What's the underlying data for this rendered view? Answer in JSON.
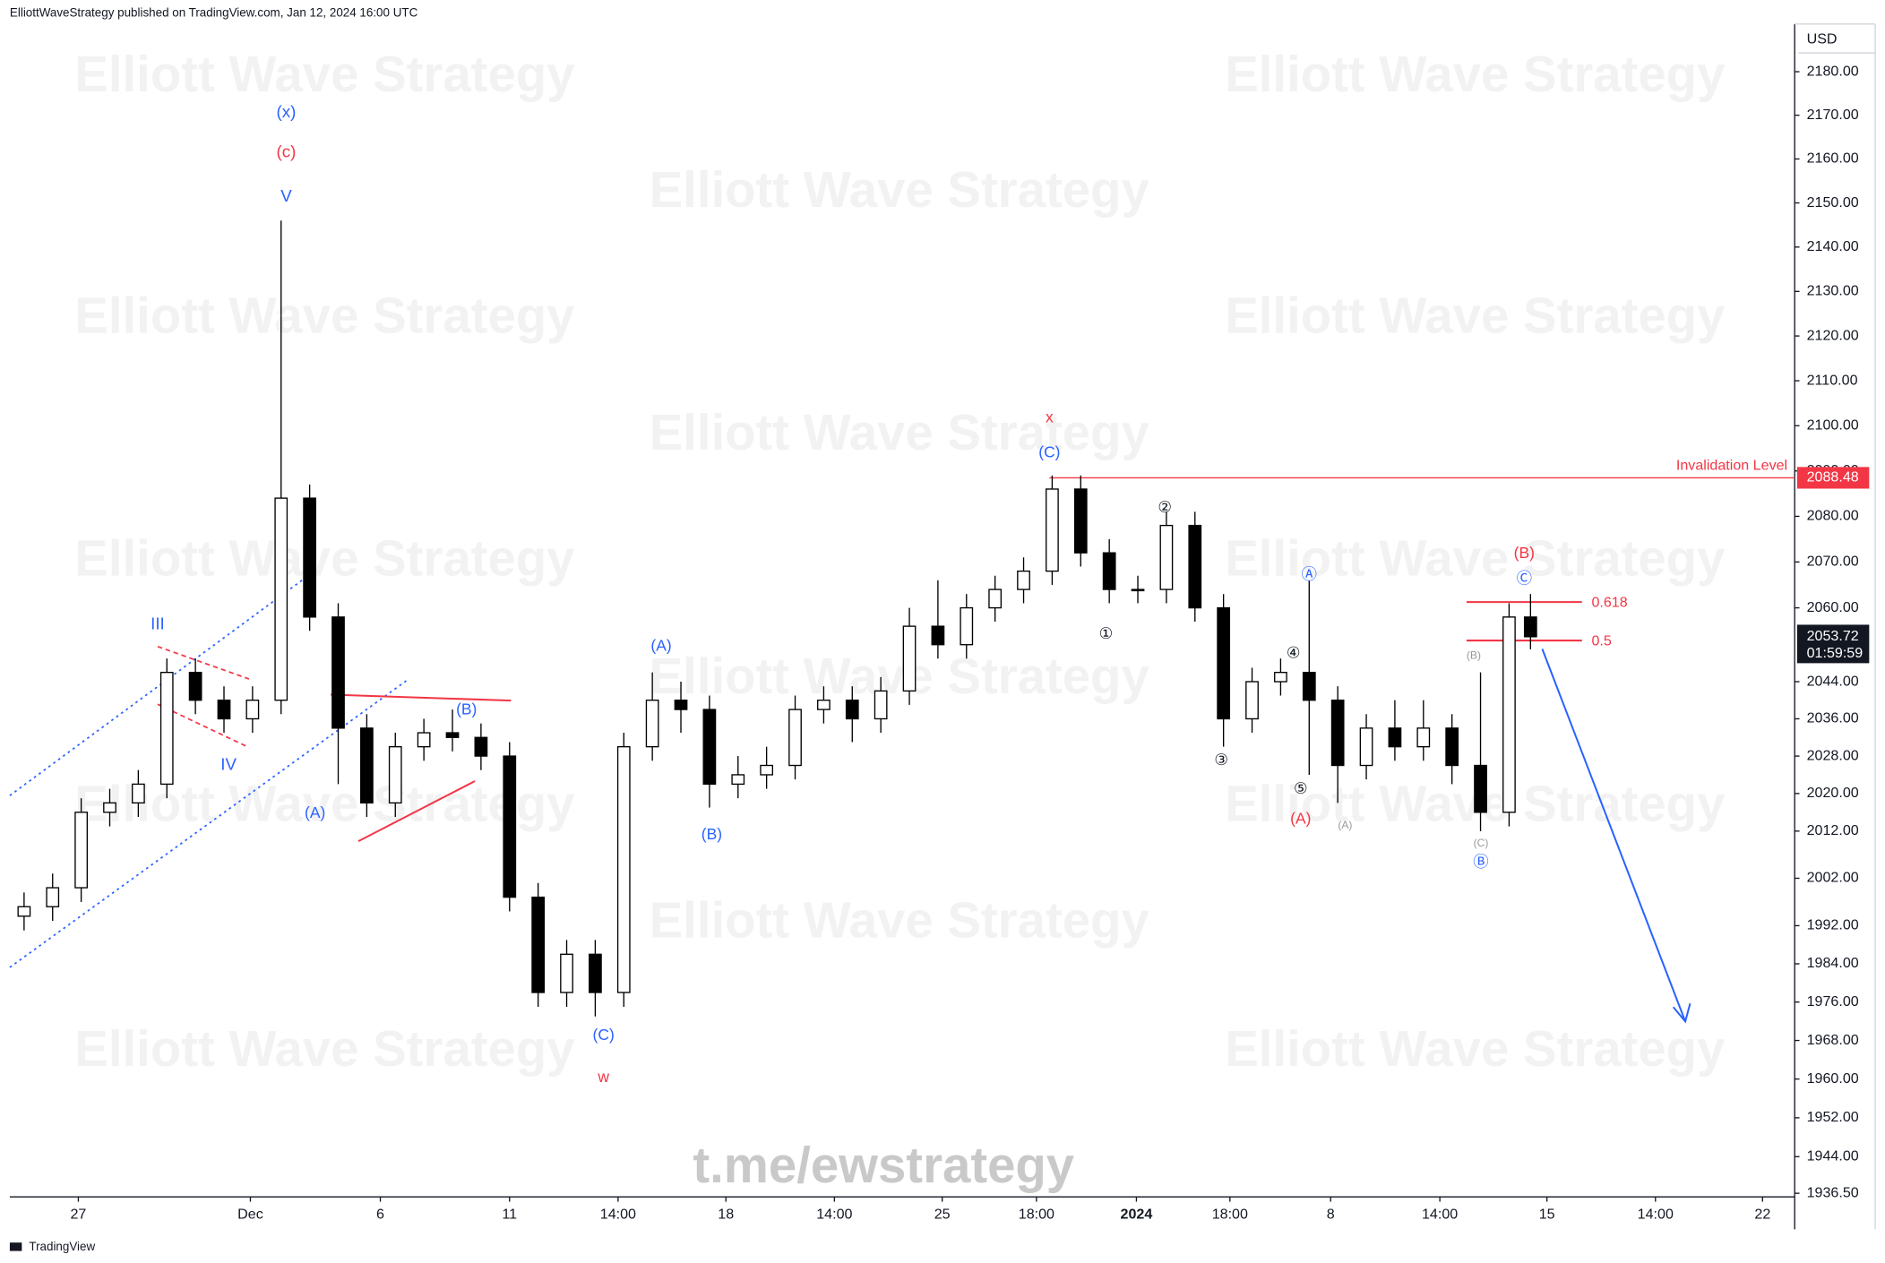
{
  "header": "ElliottWaveStrategy published on TradingView.com, Jan 12, 2024 16:00 UTC",
  "watermark": "Elliott Wave Strategy",
  "footer_link": "t.me/ewstrategy",
  "footer_brand": "TradingView",
  "chart_data": {
    "type": "candlestick",
    "currency": "USD",
    "x": [
      2,
      6,
      10,
      14,
      18,
      22,
      26,
      30,
      34,
      38,
      42,
      46,
      50,
      54,
      58,
      62,
      66,
      70,
      74,
      78,
      82,
      86,
      90,
      94,
      98,
      102,
      106,
      110,
      114,
      118,
      122,
      126,
      130,
      134,
      138,
      142,
      146,
      150,
      154,
      158,
      162,
      166,
      170,
      174,
      178,
      182,
      186,
      190,
      194,
      198,
      202,
      206,
      210,
      213
    ],
    "open": [
      1994,
      1996,
      2000,
      2016,
      2018,
      2022,
      2046,
      2040,
      2036,
      2040,
      2084,
      2058,
      2034,
      2018,
      2030,
      2033,
      2032,
      2028,
      1998,
      1978,
      1986,
      1978,
      2030,
      2040,
      2038,
      2022,
      2024,
      2026,
      2038,
      2040,
      2036,
      2042,
      2056,
      2052,
      2060,
      2064,
      2068,
      2086,
      2072,
      2064,
      2064,
      2078,
      2060,
      2036,
      2044,
      2046,
      2040,
      2026,
      2034,
      2030,
      2034,
      2026,
      2016,
      2058
    ],
    "high": [
      1999,
      2003,
      2019,
      2021,
      2025,
      2049,
      2049,
      2043,
      2043,
      2146,
      2087,
      2061,
      2037,
      2033,
      2036,
      2038,
      2035,
      2031,
      2001,
      1989,
      1989,
      2033,
      2046,
      2044,
      2041,
      2028,
      2030,
      2041,
      2043,
      2043,
      2045,
      2060,
      2066,
      2063,
      2067,
      2071,
      2089,
      2089,
      2075,
      2067,
      2081,
      2081,
      2063,
      2047,
      2049,
      2066,
      2043,
      2037,
      2040,
      2040,
      2037,
      2046,
      2061,
      2063
    ],
    "low": [
      1991,
      1993,
      1997,
      2013,
      2015,
      2019,
      2037,
      2033,
      2033,
      2037,
      2055,
      2022,
      2015,
      2015,
      2027,
      2029,
      2025,
      1995,
      1975,
      1975,
      1973,
      1975,
      2027,
      2033,
      2017,
      2019,
      2021,
      2023,
      2035,
      2031,
      2033,
      2039,
      2049,
      2049,
      2057,
      2061,
      2065,
      2069,
      2061,
      2061,
      2061,
      2057,
      2030,
      2033,
      2041,
      2024,
      2018,
      2023,
      2027,
      2027,
      2022,
      2012,
      2013,
      2051
    ],
    "close": [
      1996,
      2000,
      2016,
      2018,
      2022,
      2046,
      2040,
      2036,
      2040,
      2084,
      2058,
      2034,
      2018,
      2030,
      2033,
      2032,
      2028,
      1998,
      1978,
      1986,
      1978,
      2030,
      2040,
      2038,
      2022,
      2024,
      2026,
      2038,
      2040,
      2036,
      2042,
      2056,
      2052,
      2060,
      2064,
      2068,
      2086,
      2072,
      2064,
      2064,
      2078,
      2060,
      2036,
      2044,
      2046,
      2040,
      2026,
      2034,
      2030,
      2034,
      2026,
      2016,
      2058,
      2053.72
    ],
    "up_color": "#ffffff",
    "down_color": "#000000",
    "xlim": [
      0,
      250
    ],
    "xticks": [
      {
        "value": 9.6,
        "label": "27"
      },
      {
        "value": 33.7,
        "label": "Dec"
      },
      {
        "value": 51.9,
        "label": "6"
      },
      {
        "value": 70,
        "label": "11"
      },
      {
        "value": 85.2,
        "label": "14:00"
      },
      {
        "value": 100.3,
        "label": "18"
      },
      {
        "value": 115.5,
        "label": "14:00"
      },
      {
        "value": 130.6,
        "label": "25"
      },
      {
        "value": 143.8,
        "label": "18:00"
      },
      {
        "value": 157.8,
        "label": "2024"
      },
      {
        "value": 170.9,
        "label": "18:00"
      },
      {
        "value": 185,
        "label": "8"
      },
      {
        "value": 200.3,
        "label": "14:00"
      },
      {
        "value": 215.3,
        "label": "15"
      },
      {
        "value": 230.5,
        "label": "14:00"
      },
      {
        "value": 245.5,
        "label": "22"
      }
    ],
    "ylim": [
      1936,
      2191
    ],
    "log_scale": true,
    "grid": false,
    "yticks": [
      {
        "value": 2180,
        "label": "2180.00"
      },
      {
        "value": 2170,
        "label": "2170.00"
      },
      {
        "value": 2160,
        "label": "2160.00"
      },
      {
        "value": 2150,
        "label": "2150.00"
      },
      {
        "value": 2140,
        "label": "2140.00"
      },
      {
        "value": 2130,
        "label": "2130.00"
      },
      {
        "value": 2120,
        "label": "2120.00"
      },
      {
        "value": 2110,
        "label": "2110.00"
      },
      {
        "value": 2100,
        "label": "2100.00"
      },
      {
        "value": 2090,
        "label": "2090.00"
      },
      {
        "value": 2080,
        "label": "2080.00"
      },
      {
        "value": 2070,
        "label": "2070.00"
      },
      {
        "value": 2060,
        "label": "2060.00"
      },
      {
        "value": 2044,
        "label": "2044.00"
      },
      {
        "value": 2036,
        "label": "2036.00"
      },
      {
        "value": 2028,
        "label": "2028.00"
      },
      {
        "value": 2020,
        "label": "2020.00"
      },
      {
        "value": 2012,
        "label": "2012.00"
      },
      {
        "value": 2002,
        "label": "2002.00"
      },
      {
        "value": 1992,
        "label": "1992.00"
      },
      {
        "value": 1984,
        "label": "1984.00"
      },
      {
        "value": 1976,
        "label": "1976.00"
      },
      {
        "value": 1968,
        "label": "1968.00"
      },
      {
        "value": 1960,
        "label": "1960.00"
      },
      {
        "value": 1952,
        "label": "1952.00"
      },
      {
        "value": 1944,
        "label": "1944.00"
      },
      {
        "value": 1936.5,
        "label": "1936.50"
      }
    ],
    "annotations": [
      "(x)",
      "(c)",
      "V",
      "III",
      "IV",
      "(A)",
      "(B)",
      "(C)",
      "w",
      "(A)",
      "(B)",
      "x",
      "(C)",
      "①",
      "②",
      "③",
      "④",
      "⑤",
      "Ⓐ",
      "(A)",
      "(A)",
      "(B)",
      "(C)",
      "Ⓑ",
      "(B)",
      "Ⓒ"
    ],
    "fib_levels": [
      0.618,
      0.5
    ],
    "invalidation": {
      "label": "Invalidation Level",
      "value": 2088.48,
      "color": "#f23645"
    },
    "last_price": {
      "value": 2053.72,
      "countdown": "01:59:59"
    }
  }
}
